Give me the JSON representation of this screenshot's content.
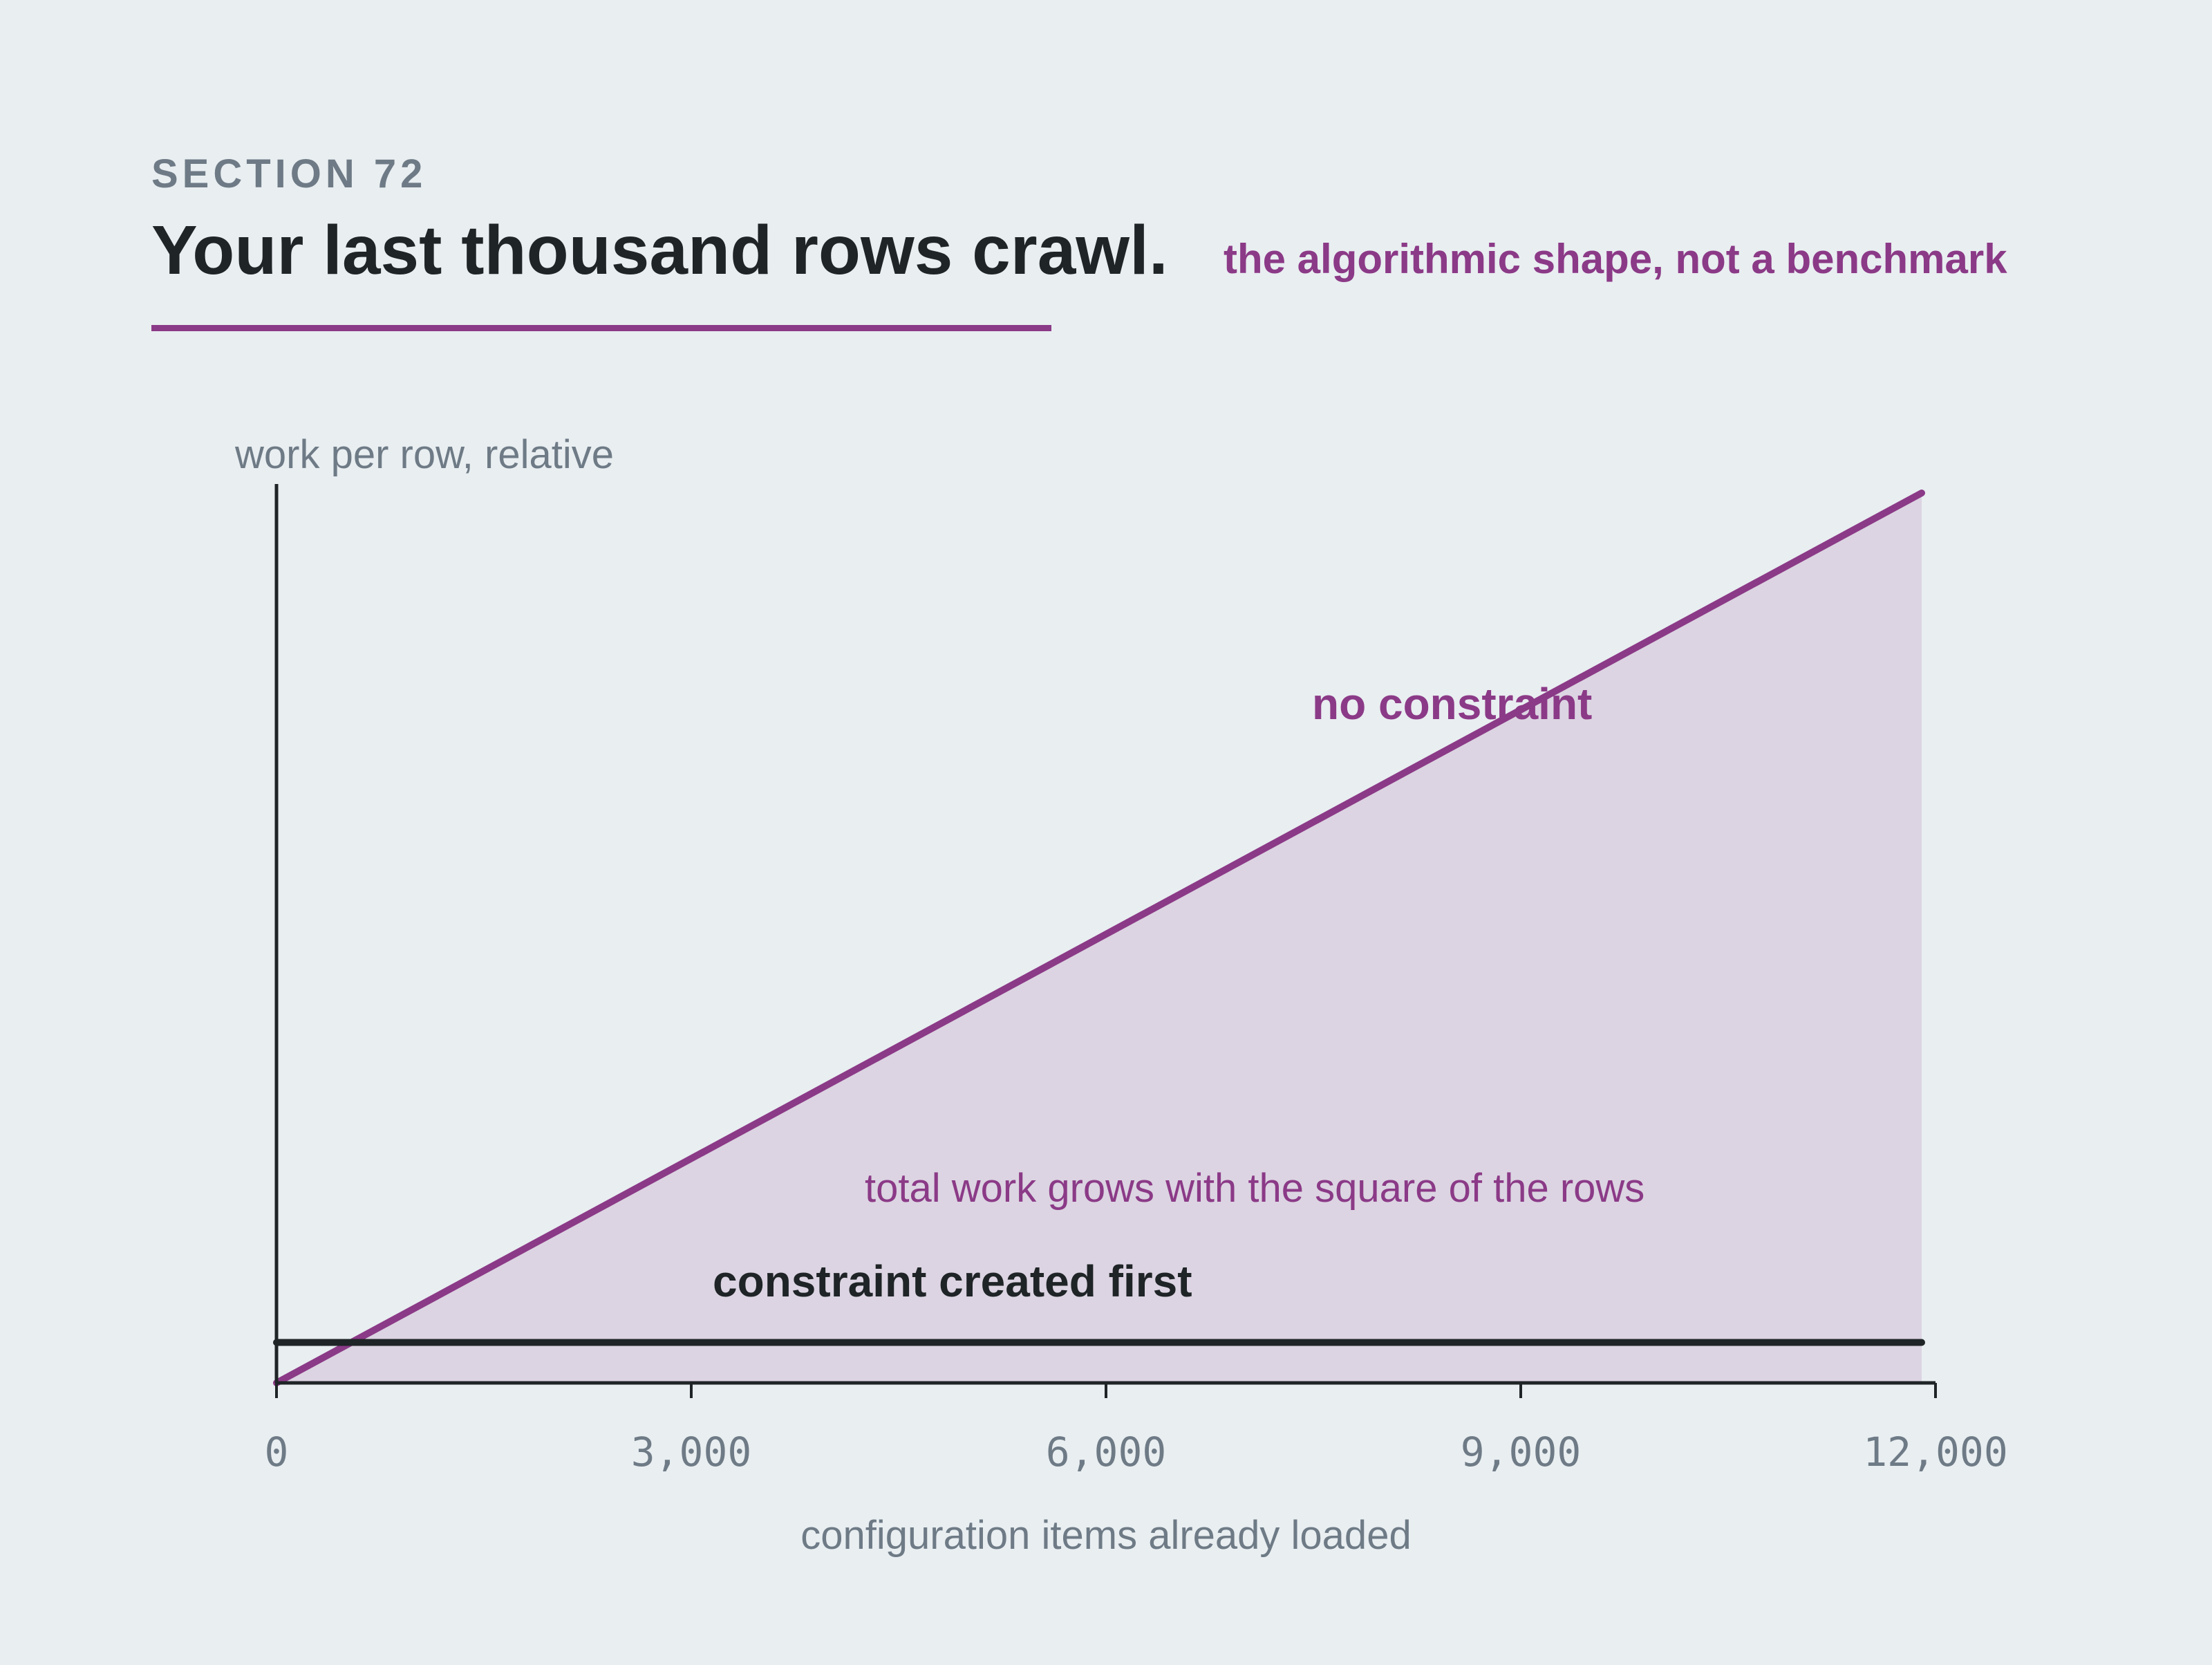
{
  "header": {
    "section": "SECTION 72",
    "title": "Your last thousand rows crawl.",
    "subtitle": "the algorithmic shape, not a benchmark"
  },
  "chart_data": {
    "type": "line",
    "title": "Your last thousand rows crawl.",
    "subtitle": "the algorithmic shape, not a benchmark",
    "xlabel": "configuration items already loaded",
    "ylabel": "work per row, relative",
    "xlim": [
      0,
      12000
    ],
    "ylim": [
      0,
      100
    ],
    "x_ticks": [
      0,
      3000,
      6000,
      9000,
      12000
    ],
    "x_tick_labels": [
      "0",
      "3,000",
      "6,000",
      "9,000",
      "12,000"
    ],
    "grid": false,
    "legend": "none",
    "series": [
      {
        "name": "no constraint",
        "color": "#8b3a87",
        "fill": true,
        "x": [
          0,
          11900
        ],
        "y": [
          0,
          99
        ]
      },
      {
        "name": "constraint created first",
        "color": "#1f2427",
        "fill": false,
        "x": [
          0,
          11900
        ],
        "y": [
          4.5,
          4.5
        ]
      }
    ],
    "annotations": [
      {
        "text": "total work grows with the square of the rows",
        "x": 4250,
        "y": 22,
        "color": "#8b3a87"
      }
    ]
  }
}
